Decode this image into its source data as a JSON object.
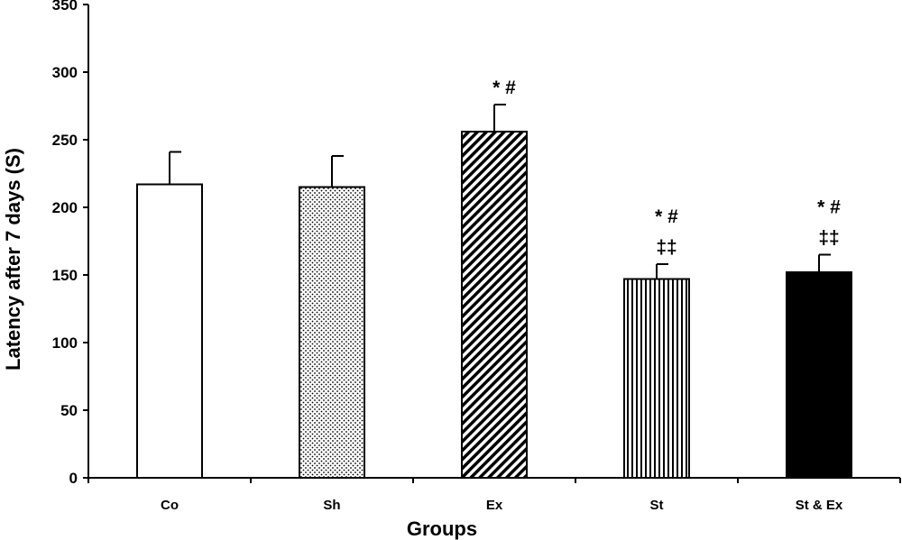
{
  "chart_data": {
    "type": "bar",
    "xlabel": "Groups",
    "ylabel": "Latency after 7 days (S)",
    "ylim": [
      0,
      350
    ],
    "yticks": [
      "0",
      "50",
      "100",
      "150",
      "200",
      "250",
      "300",
      "350"
    ],
    "grid": false,
    "legend": "none",
    "categories": [
      "Co",
      "Sh",
      "Ex",
      "St",
      "St & Ex"
    ],
    "values": [
      217,
      215,
      256,
      147,
      152
    ],
    "errors": [
      24,
      23,
      20,
      11,
      13
    ],
    "patterns": [
      "empty",
      "dots",
      "diagonal-stripes",
      "vertical-stripes",
      "solid"
    ],
    "annotations": [
      [],
      [],
      [
        "* #"
      ],
      [
        "* #",
        "‡‡"
      ],
      [
        "* #",
        "‡‡"
      ]
    ]
  }
}
